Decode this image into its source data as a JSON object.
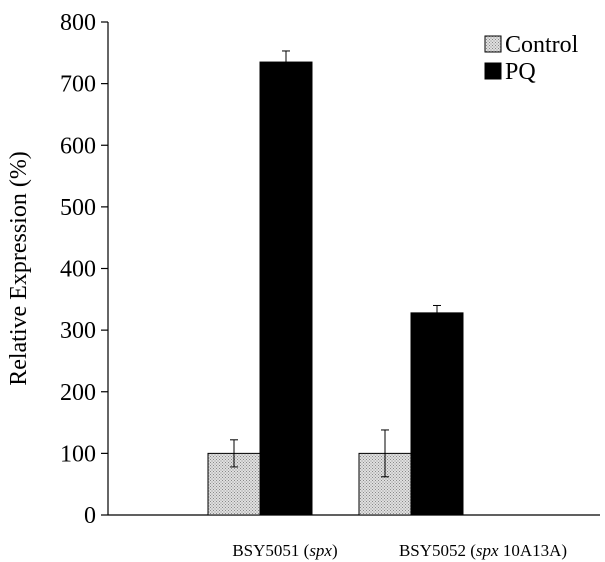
{
  "chart_data": {
    "type": "bar",
    "ylabel": "Relative Expression (%)",
    "ylim": [
      0,
      800
    ],
    "yticks": [
      0,
      100,
      200,
      300,
      400,
      500,
      600,
      700,
      800
    ],
    "categories": [
      {
        "parts": [
          {
            "text": "BSY5051 (",
            "italic": false
          },
          {
            "text": "spx",
            "italic": true
          },
          {
            "text": ")",
            "italic": false
          }
        ]
      },
      {
        "parts": [
          {
            "text": "BSY5052 (",
            "italic": false
          },
          {
            "text": "spx",
            "italic": true
          },
          {
            "text": " 10A13A)",
            "italic": false
          }
        ]
      }
    ],
    "series": [
      {
        "name": "Control",
        "values": [
          100,
          100
        ],
        "errors": [
          22,
          38
        ],
        "color": "#cccccc",
        "pattern": "dots"
      },
      {
        "name": "PQ",
        "values": [
          735,
          328
        ],
        "errors": [
          18,
          12
        ],
        "color": "#000000",
        "pattern": "solid"
      }
    ],
    "legend": {
      "position": "top-right"
    },
    "grid": false
  }
}
